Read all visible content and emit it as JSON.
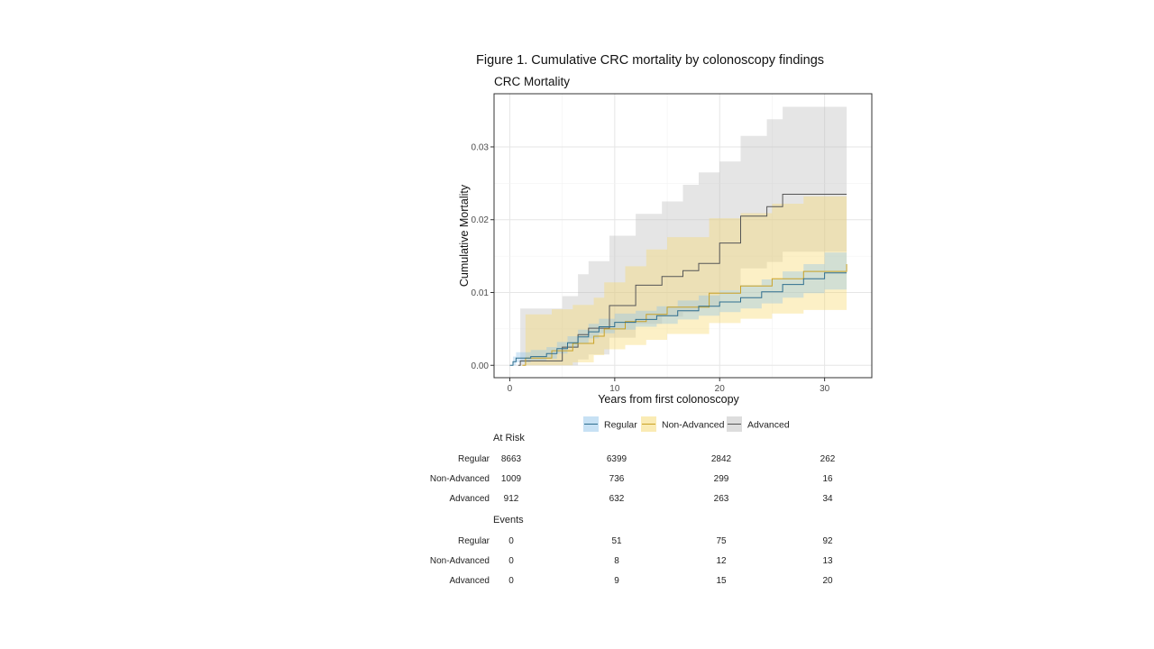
{
  "figure_title": "Figure 1. Cumulative CRC mortality by colonoscopy findings",
  "chart_data": {
    "type": "line",
    "step": true,
    "title": "CRC Mortality",
    "xlabel": "Years from first colonoscopy",
    "ylabel": "Cumulative Mortality",
    "xlim": [
      -1.5,
      34.5
    ],
    "ylim": [
      -0.0017,
      0.0373
    ],
    "x_ticks": [
      0,
      10,
      20,
      30
    ],
    "x_tick_labels": [
      "0",
      "10",
      "20",
      "30"
    ],
    "y_ticks": [
      0.0,
      0.01,
      0.02,
      0.03
    ],
    "y_tick_labels": [
      "0.00",
      "0.01",
      "0.02",
      "0.03"
    ],
    "grid": true,
    "legend_position": "bottom",
    "series": [
      {
        "name": "Regular",
        "color": "#2f6f8f",
        "fill": "#8fc3ea",
        "points": [
          [
            0,
            0.0
          ],
          [
            0.3,
            0.0005
          ],
          [
            0.6,
            0.001
          ],
          [
            2,
            0.0012
          ],
          [
            3.5,
            0.0016
          ],
          [
            4.5,
            0.0023
          ],
          [
            5.5,
            0.0031
          ],
          [
            6.5,
            0.0039
          ],
          [
            7.5,
            0.0046
          ],
          [
            8.5,
            0.0053
          ],
          [
            10,
            0.0059
          ],
          [
            12,
            0.0063
          ],
          [
            14,
            0.0068
          ],
          [
            16,
            0.0075
          ],
          [
            18,
            0.0081
          ],
          [
            20,
            0.0087
          ],
          [
            22,
            0.0093
          ],
          [
            24,
            0.0101
          ],
          [
            26,
            0.0111
          ],
          [
            28,
            0.0119
          ],
          [
            30,
            0.0127
          ],
          [
            32.1,
            0.0127
          ]
        ],
        "lower": [
          [
            0,
            0.0
          ],
          [
            0.3,
            0.0
          ],
          [
            0.6,
            0.0004
          ],
          [
            2,
            0.0006
          ],
          [
            3.5,
            0.0009
          ],
          [
            4.5,
            0.0016
          ],
          [
            5.5,
            0.0024
          ],
          [
            6.5,
            0.003
          ],
          [
            7.5,
            0.0037
          ],
          [
            8.5,
            0.0044
          ],
          [
            10,
            0.0049
          ],
          [
            12,
            0.0053
          ],
          [
            14,
            0.0057
          ],
          [
            16,
            0.0063
          ],
          [
            18,
            0.0068
          ],
          [
            20,
            0.0073
          ],
          [
            22,
            0.0078
          ],
          [
            24,
            0.0085
          ],
          [
            26,
            0.0093
          ],
          [
            28,
            0.0099
          ],
          [
            30,
            0.0104
          ],
          [
            32.1,
            0.0104
          ]
        ],
        "upper": [
          [
            0,
            0.0
          ],
          [
            0.3,
            0.0012
          ],
          [
            0.6,
            0.0018
          ],
          [
            2,
            0.0021
          ],
          [
            3.5,
            0.0025
          ],
          [
            4.5,
            0.0032
          ],
          [
            5.5,
            0.004
          ],
          [
            6.5,
            0.0049
          ],
          [
            7.5,
            0.0057
          ],
          [
            8.5,
            0.0064
          ],
          [
            10,
            0.0071
          ],
          [
            12,
            0.0075
          ],
          [
            14,
            0.0081
          ],
          [
            16,
            0.0089
          ],
          [
            18,
            0.0096
          ],
          [
            20,
            0.0103
          ],
          [
            22,
            0.011
          ],
          [
            24,
            0.0118
          ],
          [
            26,
            0.0129
          ],
          [
            28,
            0.0139
          ],
          [
            30,
            0.0155
          ],
          [
            32.1,
            0.0155
          ]
        ]
      },
      {
        "name": "Non-Advanced",
        "color": "#c9a227",
        "fill": "#f6d76a",
        "points": [
          [
            1.2,
            0.0
          ],
          [
            1.5,
            0.001
          ],
          [
            4,
            0.002
          ],
          [
            6,
            0.003
          ],
          [
            8,
            0.004
          ],
          [
            9,
            0.005
          ],
          [
            11,
            0.006
          ],
          [
            13,
            0.007
          ],
          [
            15,
            0.008
          ],
          [
            19,
            0.0099
          ],
          [
            22,
            0.0109
          ],
          [
            25,
            0.0119
          ],
          [
            28,
            0.0129
          ],
          [
            32.1,
            0.0139
          ]
        ],
        "lower": [
          [
            1.2,
            0.0
          ],
          [
            1.5,
            0.0
          ],
          [
            4,
            0.0
          ],
          [
            6,
            0.0004
          ],
          [
            8,
            0.0014
          ],
          [
            9,
            0.0022
          ],
          [
            11,
            0.0028
          ],
          [
            13,
            0.0035
          ],
          [
            15,
            0.0043
          ],
          [
            19,
            0.0058
          ],
          [
            22,
            0.0064
          ],
          [
            25,
            0.0071
          ],
          [
            28,
            0.0076
          ],
          [
            32.1,
            0.0077
          ]
        ],
        "upper": [
          [
            1.2,
            0.0
          ],
          [
            1.5,
            0.007
          ],
          [
            4,
            0.0077
          ],
          [
            6,
            0.0083
          ],
          [
            8,
            0.0093
          ],
          [
            9,
            0.0114
          ],
          [
            11,
            0.0136
          ],
          [
            13,
            0.0159
          ],
          [
            15,
            0.0176
          ],
          [
            19,
            0.0202
          ],
          [
            22,
            0.0209
          ],
          [
            25,
            0.0222
          ],
          [
            28,
            0.0232
          ],
          [
            32.1,
            0.0232
          ]
        ]
      },
      {
        "name": "Advanced",
        "color": "#555555",
        "fill": "#bbbbbb",
        "points": [
          [
            0.8,
            0.0
          ],
          [
            1,
            0.0006
          ],
          [
            5,
            0.0025
          ],
          [
            6.5,
            0.0042
          ],
          [
            7.5,
            0.0051
          ],
          [
            9.5,
            0.0082
          ],
          [
            12,
            0.011
          ],
          [
            14.5,
            0.0122
          ],
          [
            16.5,
            0.013
          ],
          [
            18,
            0.014
          ],
          [
            20,
            0.0168
          ],
          [
            22,
            0.0205
          ],
          [
            24.5,
            0.0218
          ],
          [
            26,
            0.0235
          ],
          [
            32.1,
            0.0235
          ]
        ],
        "lower": [
          [
            0.8,
            0.0
          ],
          [
            1,
            0.0
          ],
          [
            5,
            0.0
          ],
          [
            6.5,
            0.0008
          ],
          [
            7.5,
            0.0015
          ],
          [
            9.5,
            0.0038
          ],
          [
            12,
            0.0057
          ],
          [
            14.5,
            0.0067
          ],
          [
            16.5,
            0.0073
          ],
          [
            18,
            0.0081
          ],
          [
            20,
            0.0103
          ],
          [
            22,
            0.0133
          ],
          [
            24.5,
            0.0142
          ],
          [
            26,
            0.0156
          ],
          [
            32.1,
            0.0156
          ]
        ],
        "upper": [
          [
            0.8,
            0.0
          ],
          [
            1,
            0.0078
          ],
          [
            5,
            0.0095
          ],
          [
            6.5,
            0.0125
          ],
          [
            7.5,
            0.0143
          ],
          [
            9.5,
            0.0178
          ],
          [
            12,
            0.0208
          ],
          [
            14.5,
            0.0225
          ],
          [
            16.5,
            0.0248
          ],
          [
            18,
            0.0265
          ],
          [
            20,
            0.028
          ],
          [
            22,
            0.0315
          ],
          [
            24.5,
            0.0338
          ],
          [
            26,
            0.0355
          ],
          [
            32.1,
            0.0355
          ]
        ]
      }
    ]
  },
  "tables": {
    "at_risk_label": "At Risk",
    "events_label": "Events",
    "time_points": [
      "0",
      "10",
      "20",
      "30"
    ],
    "at_risk_rows": [
      {
        "label": "Regular",
        "values": [
          "8663",
          "6399",
          "2842",
          "262"
        ]
      },
      {
        "label": "Non-Advanced",
        "values": [
          "1009",
          "736",
          "299",
          "16"
        ]
      },
      {
        "label": "Advanced",
        "values": [
          "912",
          "632",
          "263",
          "34"
        ]
      }
    ],
    "events_rows": [
      {
        "label": "Regular",
        "values": [
          "0",
          "51",
          "75",
          "92"
        ]
      },
      {
        "label": "Non-Advanced",
        "values": [
          "0",
          "8",
          "12",
          "13"
        ]
      },
      {
        "label": "Advanced",
        "values": [
          "0",
          "9",
          "15",
          "20"
        ]
      }
    ]
  }
}
